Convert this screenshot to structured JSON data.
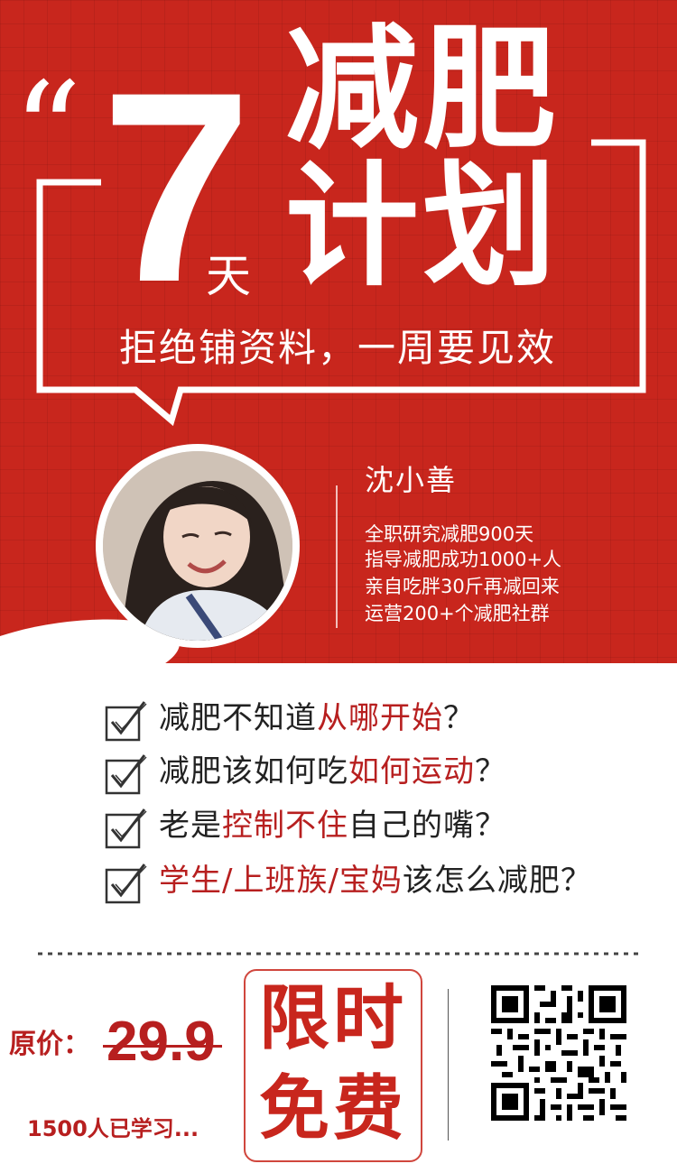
{
  "hero": {
    "quote_mark": "“",
    "number": "7",
    "unit": "天",
    "title_line1": "减肥",
    "title_line2": "计划",
    "subtitle": "拒绝铺资料，一周要见效"
  },
  "author": {
    "name": "沈小善",
    "bio": [
      "全职研究减肥900天",
      "指导减肥成功1000+人",
      "亲自吃胖30斤再减回来",
      "运营200+个减肥社群"
    ]
  },
  "questions": [
    {
      "before": "减肥不知道",
      "highlight": "从哪开始",
      "after": "？"
    },
    {
      "before": "减肥该如何吃",
      "highlight": "如何运动",
      "after": "？"
    },
    {
      "before": "老是",
      "highlight": "控制不住",
      "after": "自己的嘴？"
    },
    {
      "before": "",
      "highlight": "学生/上班族/宝妈",
      "after": "该怎么减肥？"
    }
  ],
  "pricing": {
    "original_label": "原价：",
    "original_price": "29.9",
    "learners": "1500人已学习...",
    "free_line1": "限时",
    "free_line2": "免费"
  },
  "colors": {
    "brand_red": "#c8261d",
    "highlight_red": "#b71f1f"
  },
  "icons": {
    "check": "checkbox-check-icon",
    "qr": "qr-code-icon"
  }
}
